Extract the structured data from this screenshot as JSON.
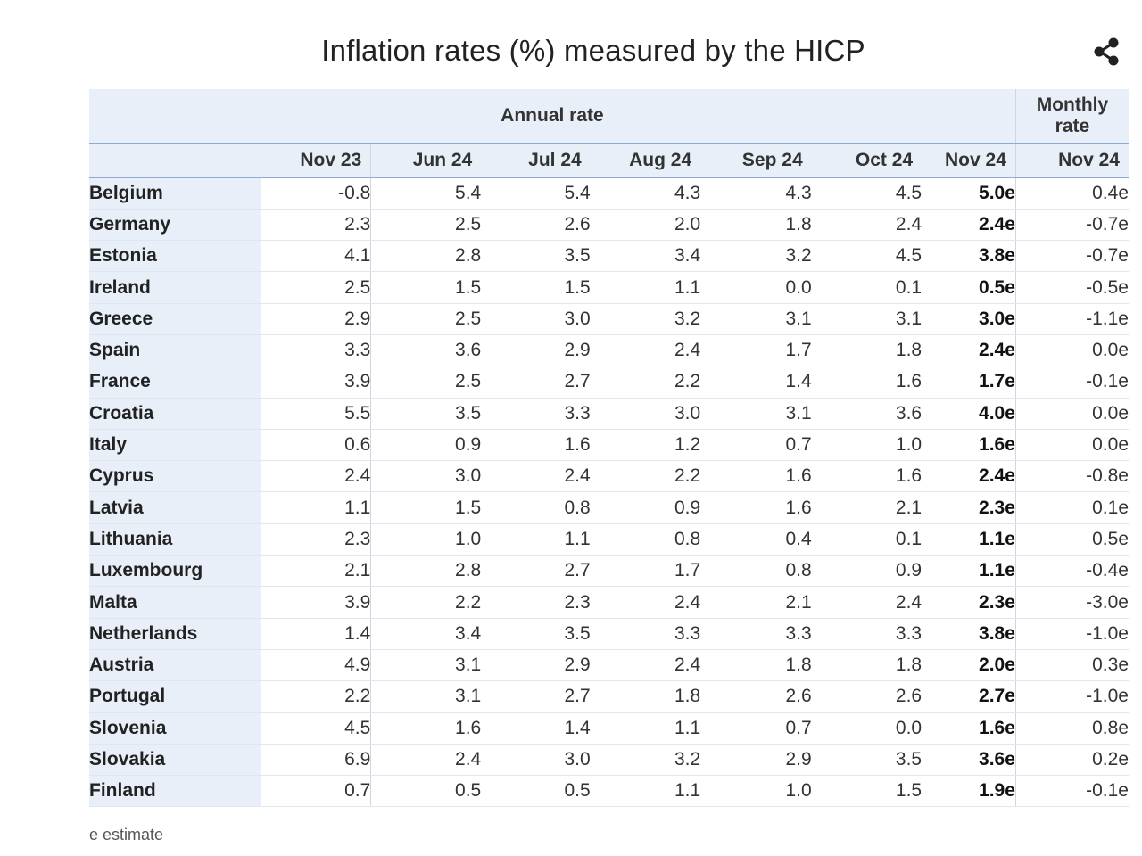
{
  "chart_data": {
    "type": "table",
    "title": "Inflation rates (%) measured by the HICP",
    "header_groups": [
      "Annual rate",
      "Monthly rate"
    ],
    "annual_columns": [
      "Nov 23",
      "Jun 24",
      "Jul 24",
      "Aug 24",
      "Sep 24",
      "Oct 24",
      "Nov 24"
    ],
    "monthly_columns": [
      "Nov 24"
    ],
    "rows": [
      {
        "country": "Belgium",
        "values": [
          "-0.8",
          "5.4",
          "5.4",
          "4.3",
          "4.3",
          "4.5",
          "5.0e",
          "0.4e"
        ]
      },
      {
        "country": "Germany",
        "values": [
          "2.3",
          "2.5",
          "2.6",
          "2.0",
          "1.8",
          "2.4",
          "2.4e",
          "-0.7e"
        ]
      },
      {
        "country": "Estonia",
        "values": [
          "4.1",
          "2.8",
          "3.5",
          "3.4",
          "3.2",
          "4.5",
          "3.8e",
          "-0.7e"
        ]
      },
      {
        "country": "Ireland",
        "values": [
          "2.5",
          "1.5",
          "1.5",
          "1.1",
          "0.0",
          "0.1",
          "0.5e",
          "-0.5e"
        ]
      },
      {
        "country": "Greece",
        "values": [
          "2.9",
          "2.5",
          "3.0",
          "3.2",
          "3.1",
          "3.1",
          "3.0e",
          "-1.1e"
        ]
      },
      {
        "country": "Spain",
        "values": [
          "3.3",
          "3.6",
          "2.9",
          "2.4",
          "1.7",
          "1.8",
          "2.4e",
          "0.0e"
        ]
      },
      {
        "country": "France",
        "values": [
          "3.9",
          "2.5",
          "2.7",
          "2.2",
          "1.4",
          "1.6",
          "1.7e",
          "-0.1e"
        ]
      },
      {
        "country": "Croatia",
        "values": [
          "5.5",
          "3.5",
          "3.3",
          "3.0",
          "3.1",
          "3.6",
          "4.0e",
          "0.0e"
        ]
      },
      {
        "country": "Italy",
        "values": [
          "0.6",
          "0.9",
          "1.6",
          "1.2",
          "0.7",
          "1.0",
          "1.6e",
          "0.0e"
        ]
      },
      {
        "country": "Cyprus",
        "values": [
          "2.4",
          "3.0",
          "2.4",
          "2.2",
          "1.6",
          "1.6",
          "2.4e",
          "-0.8e"
        ]
      },
      {
        "country": "Latvia",
        "values": [
          "1.1",
          "1.5",
          "0.8",
          "0.9",
          "1.6",
          "2.1",
          "2.3e",
          "0.1e"
        ]
      },
      {
        "country": "Lithuania",
        "values": [
          "2.3",
          "1.0",
          "1.1",
          "0.8",
          "0.4",
          "0.1",
          "1.1e",
          "0.5e"
        ]
      },
      {
        "country": "Luxembourg",
        "values": [
          "2.1",
          "2.8",
          "2.7",
          "1.7",
          "0.8",
          "0.9",
          "1.1e",
          "-0.4e"
        ]
      },
      {
        "country": "Malta",
        "values": [
          "3.9",
          "2.2",
          "2.3",
          "2.4",
          "2.1",
          "2.4",
          "2.3e",
          "-3.0e"
        ]
      },
      {
        "country": "Netherlands",
        "values": [
          "1.4",
          "3.4",
          "3.5",
          "3.3",
          "3.3",
          "3.3",
          "3.8e",
          "-1.0e"
        ]
      },
      {
        "country": "Austria",
        "values": [
          "4.9",
          "3.1",
          "2.9",
          "2.4",
          "1.8",
          "1.8",
          "2.0e",
          "0.3e"
        ]
      },
      {
        "country": "Portugal",
        "values": [
          "2.2",
          "3.1",
          "2.7",
          "1.8",
          "2.6",
          "2.6",
          "2.7e",
          "-1.0e"
        ]
      },
      {
        "country": "Slovenia",
        "values": [
          "4.5",
          "1.6",
          "1.4",
          "1.1",
          "0.7",
          "0.0",
          "1.6e",
          "0.8e"
        ]
      },
      {
        "country": "Slovakia",
        "values": [
          "6.9",
          "2.4",
          "3.0",
          "3.2",
          "2.9",
          "3.5",
          "3.6e",
          "0.2e"
        ]
      },
      {
        "country": "Finland",
        "values": [
          "0.7",
          "0.5",
          "0.5",
          "1.1",
          "1.0",
          "1.5",
          "1.9e",
          "-0.1e"
        ]
      }
    ],
    "footnote": "e estimate"
  },
  "monthly_header_lines": [
    "Monthly",
    "rate"
  ],
  "share_icon": "share-icon",
  "colors": {
    "header_bg": "#e8eff8",
    "header_rule": "#8daad4",
    "text": "#222222"
  }
}
